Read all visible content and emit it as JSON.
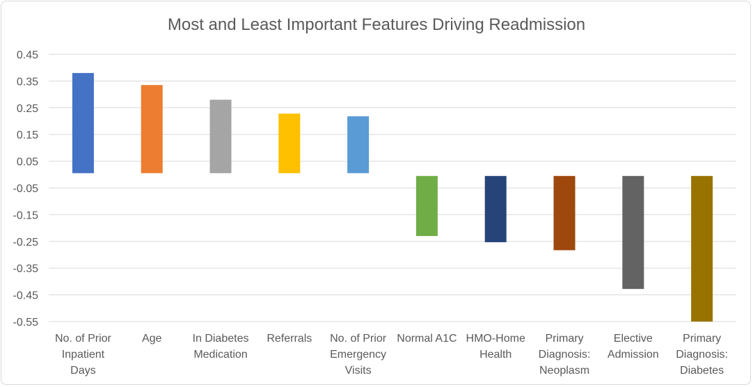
{
  "chart_data": {
    "type": "bar",
    "title": "Most and Least Important Features Driving Readmission",
    "xlabel": "",
    "ylabel": "",
    "ylim": [
      -0.55,
      0.45
    ],
    "yticks": [
      "0.45",
      "0.35",
      "0.25",
      "0.15",
      "0.05",
      "-0.05",
      "-0.15",
      "-0.25",
      "-0.35",
      "-0.45",
      "-0.55"
    ],
    "grid": true,
    "legend": "none",
    "categories": [
      [
        "No. of Prior",
        "Inpatient",
        "Days"
      ],
      [
        "Age"
      ],
      [
        "In Diabetes",
        "Medication"
      ],
      [
        "Referrals"
      ],
      [
        "No. of Prior",
        "Emergency",
        "Visits"
      ],
      [
        "Normal A1C"
      ],
      [
        "HMO-Home",
        "Health"
      ],
      [
        "Primary",
        "Diagnosis:",
        "Neoplasm"
      ],
      [
        "Elective",
        "Admission"
      ],
      [
        "Primary",
        "Diagnosis:",
        "Diabetes"
      ]
    ],
    "values": [
      0.38,
      0.335,
      0.28,
      0.228,
      0.218,
      -0.23,
      -0.253,
      -0.283,
      -0.428,
      -0.55
    ],
    "colors": [
      "#4472c4",
      "#ed7d31",
      "#a5a5a5",
      "#ffc000",
      "#5b9bd5",
      "#70ad47",
      "#264478",
      "#9e480e",
      "#636363",
      "#997300"
    ]
  }
}
